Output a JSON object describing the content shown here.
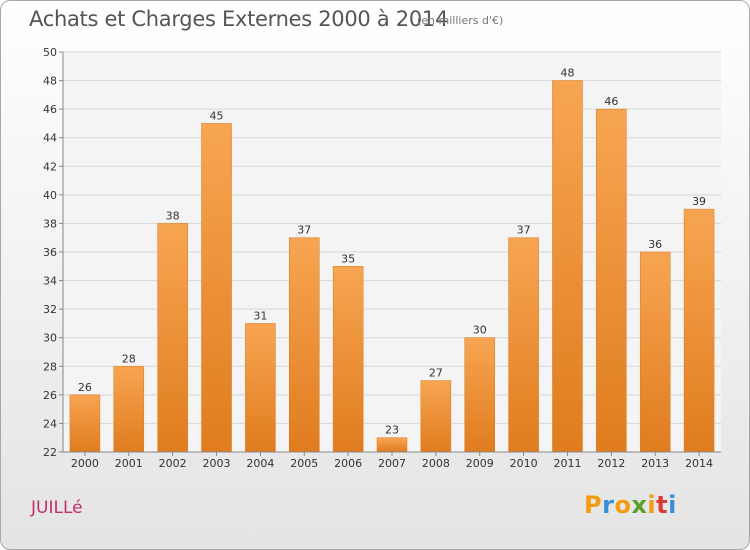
{
  "title": "Achats et Charges Externes 2000 à 2014",
  "subtitle": "(en milliers d'€)",
  "commune": "JUILLé",
  "logo": {
    "letters": [
      "P",
      "r",
      "o",
      "x",
      "i",
      "t",
      "i"
    ],
    "colors": [
      "#f39c12",
      "#3b8fd8",
      "#f39c12",
      "#5aa02c",
      "#f39c12",
      "#d93b3b",
      "#3b8fd8"
    ]
  },
  "chart_data": {
    "type": "bar",
    "categories": [
      "2000",
      "2001",
      "2002",
      "2003",
      "2004",
      "2005",
      "2006",
      "2007",
      "2008",
      "2009",
      "2010",
      "2011",
      "2012",
      "2013",
      "2014"
    ],
    "values": [
      26,
      28,
      38,
      45,
      31,
      37,
      35,
      23,
      27,
      30,
      37,
      48,
      46,
      36,
      39
    ],
    "ylim": [
      22,
      50
    ],
    "yticks": [
      22,
      24,
      26,
      28,
      30,
      32,
      34,
      36,
      38,
      40,
      42,
      44,
      46,
      48,
      50
    ],
    "grid": true,
    "bar_color_top": "#f7a552",
    "bar_color_bottom": "#e07c1e"
  }
}
